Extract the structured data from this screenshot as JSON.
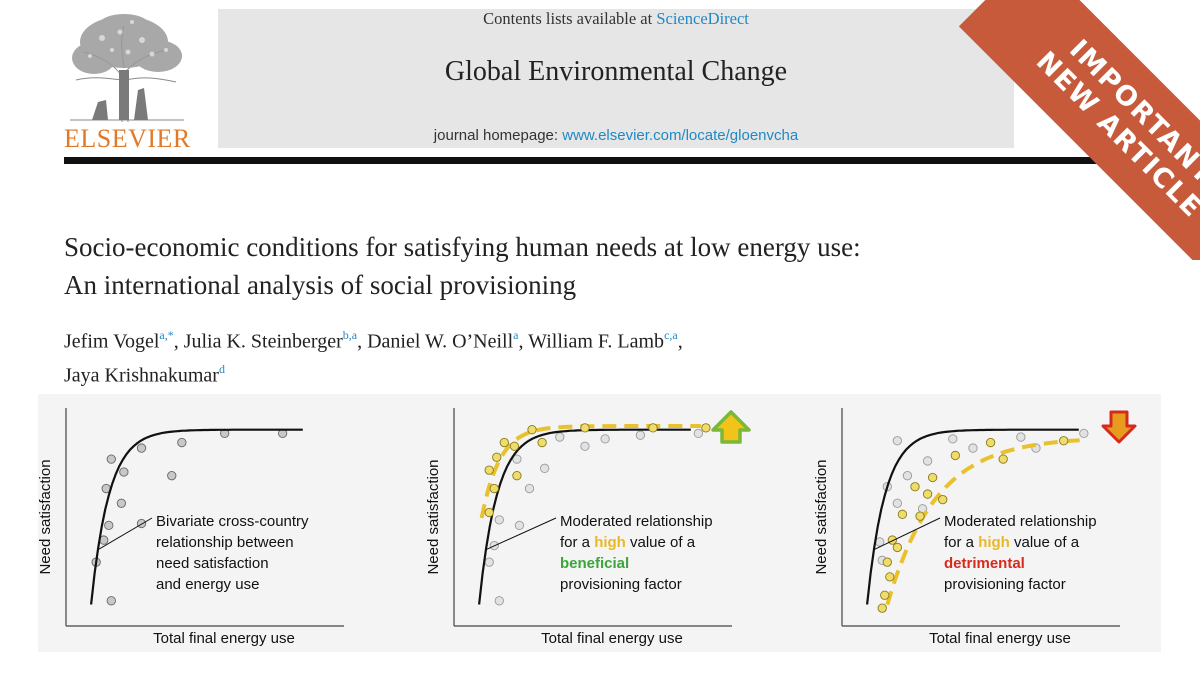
{
  "header": {
    "publisher": "ELSEVIER",
    "contents_prefix": "Contents lists available at ",
    "contents_link": "ScienceDirect",
    "journal_name": "Global Environmental Change",
    "homepage_prefix": "journal homepage: ",
    "homepage_link": "www.elsevier.com/locate/gloenvcha"
  },
  "banner": {
    "line1": "IMPORTANT",
    "line2": "NEW ARTICLE"
  },
  "article": {
    "title_line1": "Socio-economic conditions for satisfying human needs at low energy use:",
    "title_line2": "An international analysis of social provisioning",
    "authors": [
      {
        "name": "Jefim Vogel",
        "aff": "a,*"
      },
      {
        "name": "Julia K. Steinberger",
        "aff": "b,a"
      },
      {
        "name": "Daniel W. O’Neill",
        "aff": "a"
      },
      {
        "name": "William F. Lamb",
        "aff": "c,a"
      },
      {
        "name": "Jaya Krishnakumar",
        "aff": "d"
      }
    ]
  },
  "colors": {
    "accent": "#1f89c4",
    "banner": "#c75a3a",
    "publisher": "#e07a2a",
    "dash": "#e8c12d",
    "beneficial": "#3aa63a",
    "detrimental": "#d62a1e",
    "arrow_up": "#7ab83a",
    "arrow_down": "#e89b1e"
  },
  "chart_data": [
    {
      "type": "scatter",
      "xlabel": "Total final energy use",
      "ylabel": "Need satisfaction",
      "annotation": [
        "Bivariate cross-country",
        "relationship between",
        "need satisfaction",
        "and energy use"
      ],
      "points": [
        [
          0.14,
          0.82
        ],
        [
          0.26,
          0.88
        ],
        [
          0.42,
          0.91
        ],
        [
          0.59,
          0.96
        ],
        [
          0.82,
          0.96
        ],
        [
          0.19,
          0.75
        ],
        [
          0.38,
          0.73
        ],
        [
          0.12,
          0.66
        ],
        [
          0.18,
          0.58
        ],
        [
          0.13,
          0.46
        ],
        [
          0.26,
          0.47
        ],
        [
          0.11,
          0.38
        ],
        [
          0.08,
          0.26
        ],
        [
          0.14,
          0.05
        ]
      ],
      "curve": "baseline"
    },
    {
      "type": "scatter",
      "xlabel": "Total final energy use",
      "ylabel": "Need satisfaction",
      "annotation": [
        "Moderated relationship",
        "for a ",
        "high",
        " value of a",
        "beneficial",
        "provisioning factor"
      ],
      "indicator": "up",
      "points_grey": [
        [
          0.38,
          0.94
        ],
        [
          0.56,
          0.93
        ],
        [
          0.7,
          0.95
        ],
        [
          0.93,
          0.96
        ],
        [
          0.48,
          0.89
        ],
        [
          0.21,
          0.82
        ],
        [
          0.32,
          0.77
        ],
        [
          0.26,
          0.66
        ],
        [
          0.14,
          0.49
        ],
        [
          0.22,
          0.46
        ],
        [
          0.12,
          0.35
        ],
        [
          0.1,
          0.26
        ],
        [
          0.14,
          0.05
        ]
      ],
      "points_yellow": [
        [
          0.16,
          0.91
        ],
        [
          0.27,
          0.98
        ],
        [
          0.48,
          0.99
        ],
        [
          0.75,
          0.99
        ],
        [
          0.96,
          0.99
        ],
        [
          0.13,
          0.83
        ],
        [
          0.2,
          0.89
        ],
        [
          0.31,
          0.91
        ],
        [
          0.1,
          0.76
        ],
        [
          0.21,
          0.73
        ],
        [
          0.12,
          0.66
        ],
        [
          0.1,
          0.53
        ]
      ],
      "curves": [
        "baseline",
        "moderated_high"
      ]
    },
    {
      "type": "scatter",
      "xlabel": "Total final energy use",
      "ylabel": "Need satisfaction",
      "annotation": [
        "Moderated relationship",
        "for a ",
        "high",
        " value of a",
        "detrimental",
        "provisioning factor"
      ],
      "indicator": "down",
      "points_grey": [
        [
          0.18,
          0.92
        ],
        [
          0.4,
          0.93
        ],
        [
          0.67,
          0.94
        ],
        [
          0.92,
          0.96
        ],
        [
          0.48,
          0.88
        ],
        [
          0.73,
          0.88
        ],
        [
          0.3,
          0.81
        ],
        [
          0.22,
          0.73
        ],
        [
          0.14,
          0.67
        ],
        [
          0.28,
          0.55
        ],
        [
          0.18,
          0.58
        ],
        [
          0.11,
          0.37
        ],
        [
          0.12,
          0.27
        ]
      ],
      "points_yellow": [
        [
          0.55,
          0.91
        ],
        [
          0.84,
          0.92
        ],
        [
          0.41,
          0.84
        ],
        [
          0.6,
          0.82
        ],
        [
          0.32,
          0.72
        ],
        [
          0.25,
          0.67
        ],
        [
          0.3,
          0.63
        ],
        [
          0.36,
          0.6
        ],
        [
          0.2,
          0.52
        ],
        [
          0.27,
          0.51
        ],
        [
          0.16,
          0.38
        ],
        [
          0.18,
          0.34
        ],
        [
          0.14,
          0.26
        ],
        [
          0.15,
          0.18
        ],
        [
          0.13,
          0.08
        ],
        [
          0.12,
          0.01
        ]
      ],
      "curves": [
        "baseline",
        "moderated_low"
      ]
    }
  ]
}
